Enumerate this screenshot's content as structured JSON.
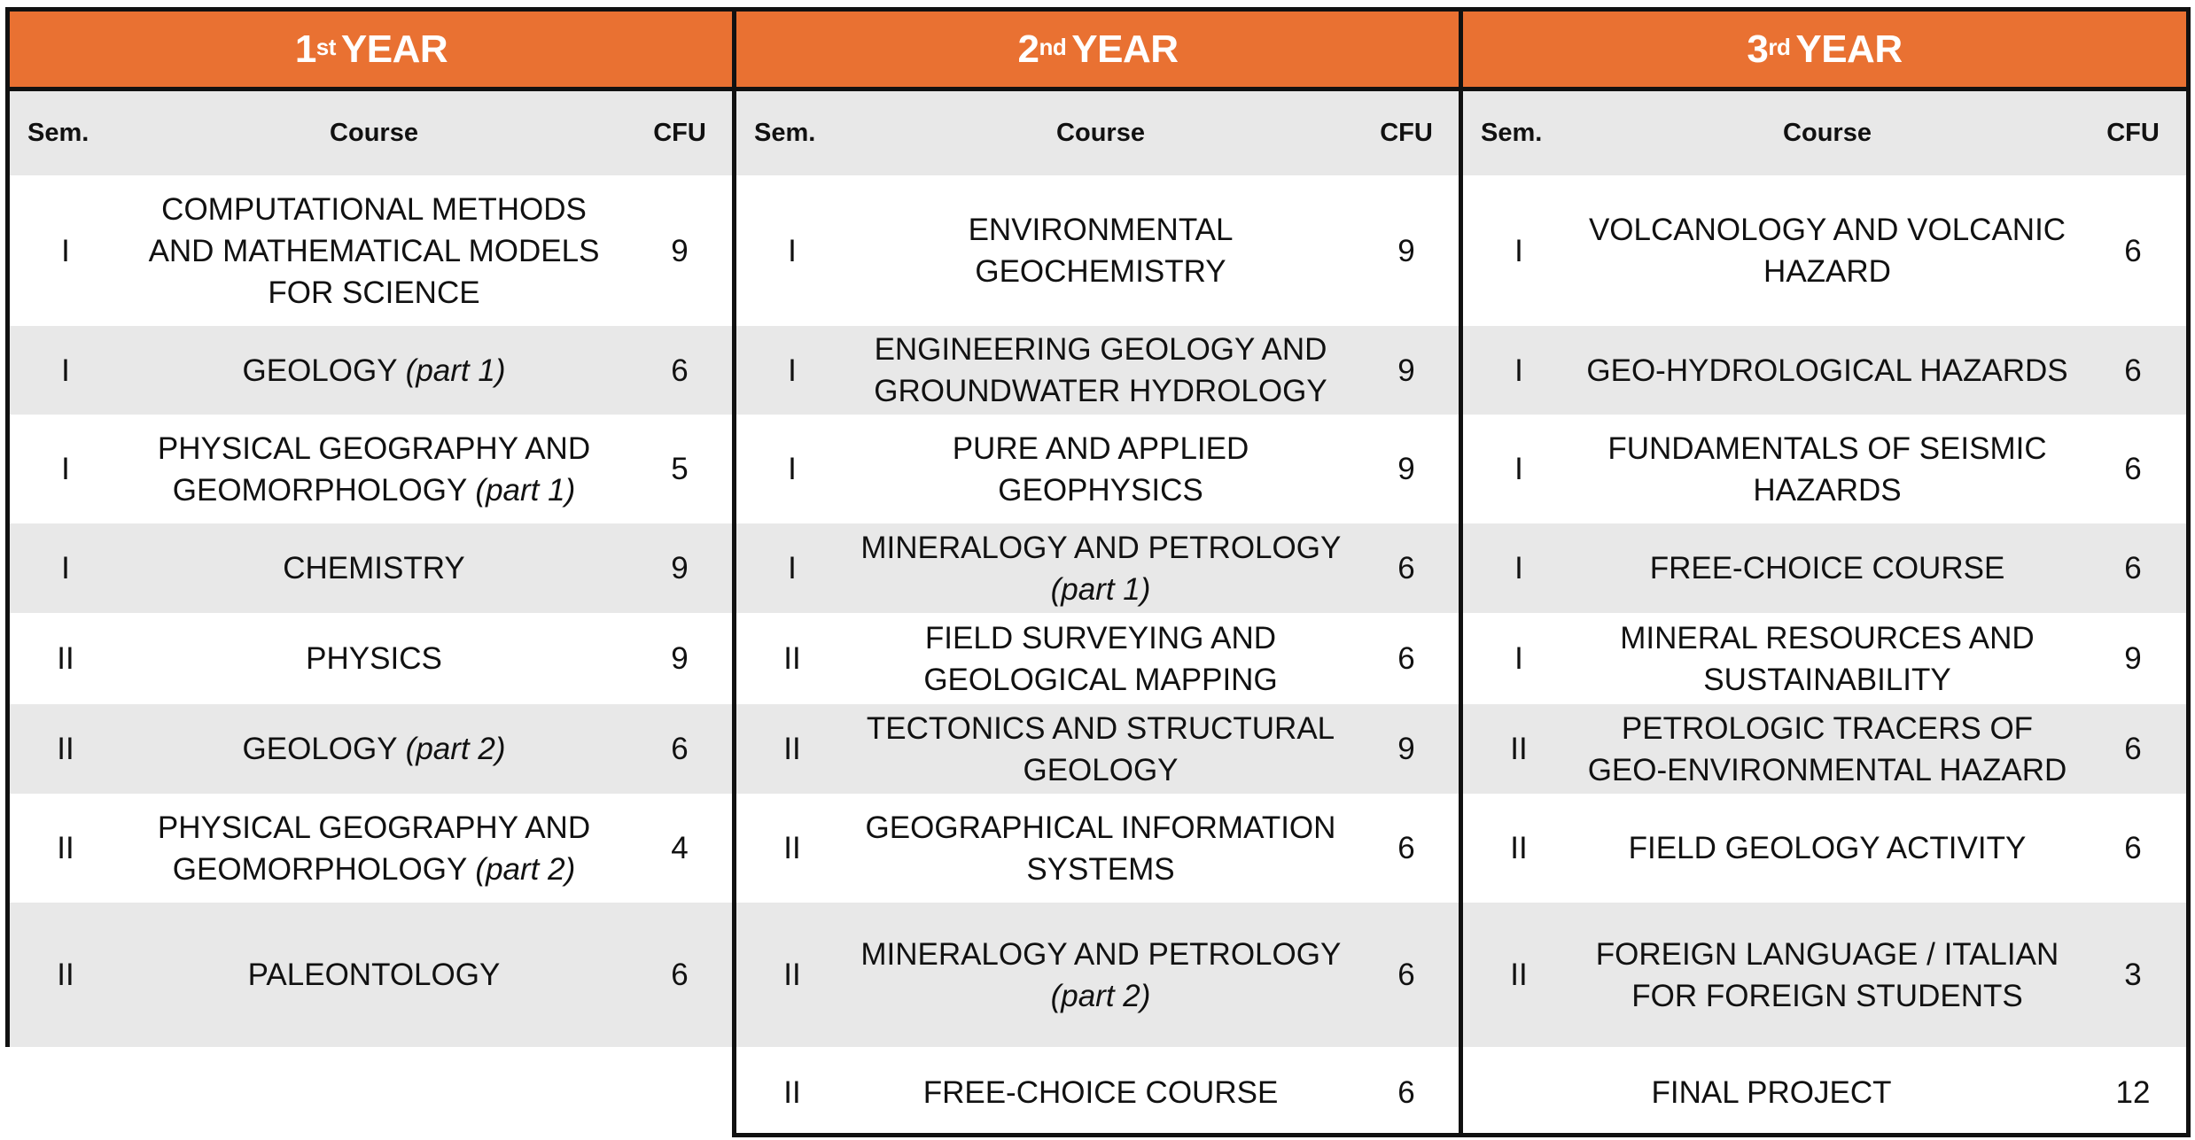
{
  "headers": {
    "sem": "Sem.",
    "course": "Course",
    "cfu": "CFU"
  },
  "years": [
    {
      "num": "1",
      "suffix": "st",
      "label": "YEAR",
      "rows": [
        {
          "sem": "I",
          "course": "COMPUTATIONAL METHODS AND MATHEMATICAL MODELS FOR SCIENCE",
          "note": "",
          "cfu": "9"
        },
        {
          "sem": "I",
          "course": "GEOLOGY",
          "note": "(part 1)",
          "cfu": "6"
        },
        {
          "sem": "I",
          "course": "PHYSICAL GEOGRAPHY AND GEOMORPHOLOGY",
          "note": "(part 1)",
          "cfu": "5"
        },
        {
          "sem": "I",
          "course": "CHEMISTRY",
          "note": "",
          "cfu": "9"
        },
        {
          "sem": "II",
          "course": "PHYSICS",
          "note": "",
          "cfu": "9"
        },
        {
          "sem": "II",
          "course": "GEOLOGY",
          "note": "(part 2)",
          "cfu": "6"
        },
        {
          "sem": "II",
          "course": "PHYSICAL GEOGRAPHY AND GEOMORPHOLOGY",
          "note": "(part 2)",
          "cfu": "4"
        },
        {
          "sem": "II",
          "course": "PALEONTOLOGY",
          "note": "",
          "cfu": "6"
        }
      ]
    },
    {
      "num": "2",
      "suffix": "nd",
      "label": "YEAR",
      "rows": [
        {
          "sem": "I",
          "course": "ENVIRONMENTAL GEOCHEMISTRY",
          "note": "",
          "cfu": "9"
        },
        {
          "sem": "I",
          "course": "ENGINEERING GEOLOGY AND GROUNDWATER HYDROLOGY",
          "note": "",
          "cfu": "9"
        },
        {
          "sem": "I",
          "course": "PURE AND APPLIED GEOPHYSICS",
          "note": "",
          "cfu": "9"
        },
        {
          "sem": "I",
          "course": "MINERALOGY AND PETROLOGY",
          "note": "(part 1)",
          "cfu": "6"
        },
        {
          "sem": "II",
          "course": "FIELD SURVEYING AND GEOLOGICAL MAPPING",
          "note": "",
          "cfu": "6"
        },
        {
          "sem": "II",
          "course": "TECTONICS AND STRUCTURAL GEOLOGY",
          "note": "",
          "cfu": "9"
        },
        {
          "sem": "II",
          "course": "GEOGRAPHICAL INFORMATION SYSTEMS",
          "note": "",
          "cfu": "6"
        },
        {
          "sem": "II",
          "course": "MINERALOGY AND PETROLOGY",
          "note": "(part 2)",
          "cfu": "6"
        },
        {
          "sem": "II",
          "course": "FREE-CHOICE COURSE",
          "note": "",
          "cfu": "6"
        }
      ]
    },
    {
      "num": "3",
      "suffix": "rd",
      "label": "YEAR",
      "rows": [
        {
          "sem": "I",
          "course": "VOLCANOLOGY AND VOLCANIC HAZARD",
          "note": "",
          "cfu": "6"
        },
        {
          "sem": "I",
          "course": "GEO-HYDROLOGICAL HAZARDS",
          "note": "",
          "cfu": "6"
        },
        {
          "sem": "I",
          "course": "FUNDAMENTALS OF SEISMIC HAZARDS",
          "note": "",
          "cfu": "6"
        },
        {
          "sem": "I",
          "course": "FREE-CHOICE COURSE",
          "note": "",
          "cfu": "6"
        },
        {
          "sem": "I",
          "course": "MINERAL RESOURCES AND SUSTAINABILITY",
          "note": "",
          "cfu": "9"
        },
        {
          "sem": "II",
          "course": "PETROLOGIC TRACERS OF GEO-ENVIRONMENTAL HAZARD",
          "note": "",
          "cfu": "6"
        },
        {
          "sem": "II",
          "course": "FIELD GEOLOGY ACTIVITY",
          "note": "",
          "cfu": "6"
        },
        {
          "sem": "II",
          "course": "FOREIGN LANGUAGE / ITALIAN FOR FOREIGN STUDENTS",
          "note": "",
          "cfu": "3"
        },
        {
          "sem": "",
          "course": "FINAL PROJECT",
          "note": "",
          "cfu": "12"
        }
      ]
    }
  ]
}
